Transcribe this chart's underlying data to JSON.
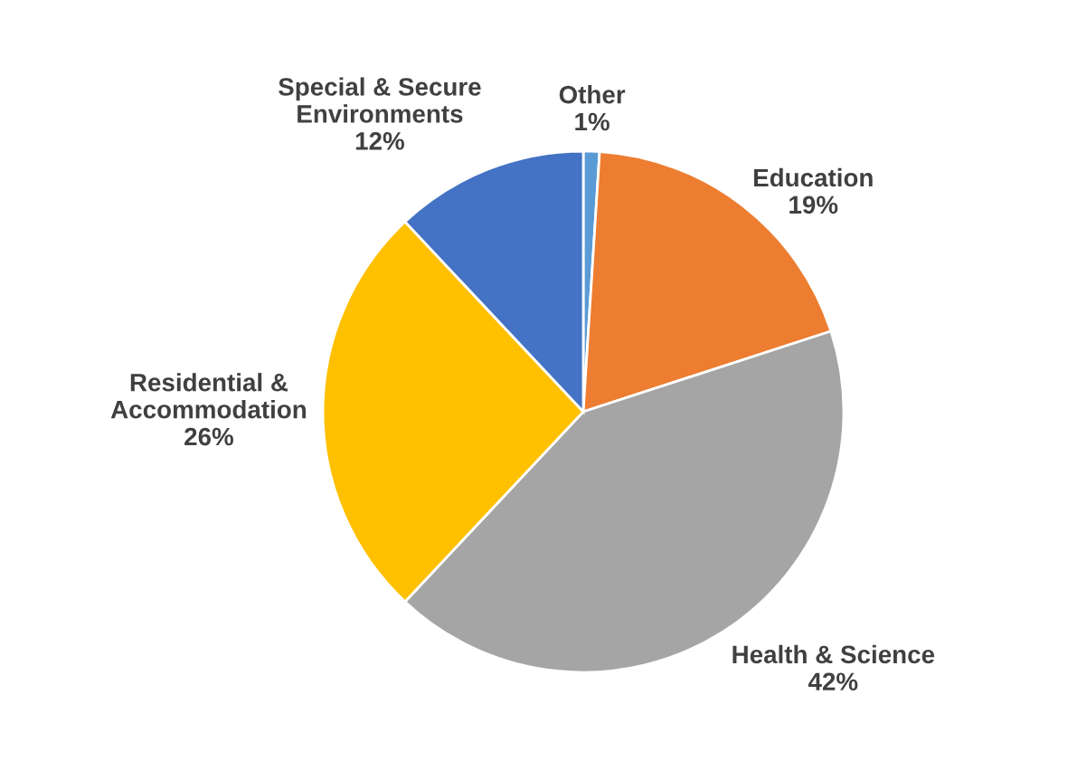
{
  "chart_data": {
    "type": "pie",
    "categories": [
      "Other",
      "Education",
      "Health & Science",
      "Residential &\nAccommodation",
      "Special & Secure\nEnvironments"
    ],
    "values": [
      1,
      19,
      42,
      26,
      12
    ],
    "value_labels": [
      "1%",
      "19%",
      "42%",
      "26%",
      "12%"
    ],
    "colors": [
      "#5b9bd5",
      "#ed7d31",
      "#a5a5a5",
      "#ffc000",
      "#4472c4"
    ]
  }
}
